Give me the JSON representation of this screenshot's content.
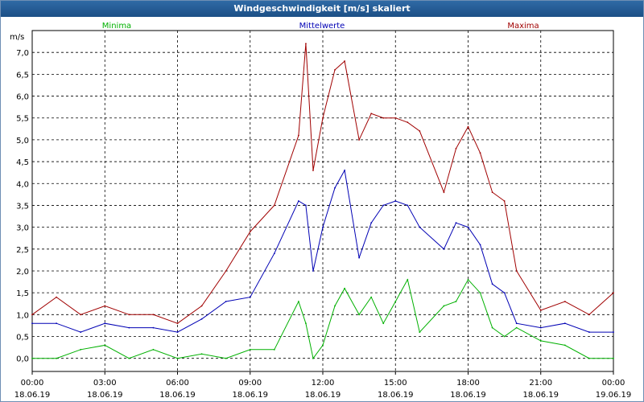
{
  "window": {
    "title": "Windgeschwindigkeit [m/s] skaliert"
  },
  "chart_data": {
    "type": "line",
    "title": "Windgeschwindigkeit [m/s] skaliert",
    "ylabel": "m/s",
    "ylim": [
      -0.3,
      7.5
    ],
    "yticks": [
      "0,0",
      "0,5",
      "1,0",
      "1,5",
      "2,0",
      "2,5",
      "3,0",
      "3,5",
      "4,0",
      "4,5",
      "5,0",
      "5,5",
      "6,0",
      "6,5",
      "7,0"
    ],
    "xlim": [
      0,
      24
    ],
    "x_tick_times": [
      "00:00",
      "03:00",
      "06:00",
      "09:00",
      "12:00",
      "15:00",
      "18:00",
      "21:00",
      "00:00"
    ],
    "x_tick_dates": [
      "18.06.19",
      "18.06.19",
      "18.06.19",
      "18.06.19",
      "18.06.19",
      "18.06.19",
      "18.06.19",
      "18.06.19",
      "19.06.19"
    ],
    "grid": true,
    "legend": "top",
    "x": [
      0,
      1,
      2,
      3,
      4,
      5,
      6,
      7,
      8,
      9,
      10,
      11,
      11.3,
      11.6,
      12,
      12.5,
      12.9,
      13.5,
      14,
      14.5,
      15,
      15.5,
      16,
      17,
      17.5,
      18,
      18.5,
      19,
      19.5,
      20,
      21,
      22,
      23,
      24
    ],
    "series": [
      {
        "name": "Minima",
        "color": "#00b000",
        "values": [
          0,
          0,
          0.2,
          0.3,
          0,
          0.2,
          0,
          0.1,
          0,
          0.2,
          0.2,
          1.3,
          0.8,
          0,
          0.3,
          1.2,
          1.6,
          1.0,
          1.4,
          0.8,
          1.3,
          1.8,
          0.6,
          1.2,
          1.3,
          1.8,
          1.5,
          0.7,
          0.5,
          0.7,
          0.4,
          0.3,
          0,
          0
        ]
      },
      {
        "name": "Mittelwerte",
        "color": "#0000b4",
        "values": [
          0.8,
          0.8,
          0.6,
          0.8,
          0.7,
          0.7,
          0.6,
          0.9,
          1.3,
          1.4,
          2.4,
          3.6,
          3.5,
          2.0,
          3.0,
          3.9,
          4.3,
          2.3,
          3.1,
          3.5,
          3.6,
          3.5,
          3.0,
          2.5,
          3.1,
          3.0,
          2.6,
          1.7,
          1.5,
          0.8,
          0.7,
          0.8,
          0.6,
          0.6
        ]
      },
      {
        "name": "Maxima",
        "color": "#a00000",
        "values": [
          1.0,
          1.4,
          1.0,
          1.2,
          1.0,
          1.0,
          0.8,
          1.2,
          2.0,
          2.9,
          3.5,
          5.1,
          7.2,
          4.3,
          5.5,
          6.6,
          6.8,
          5.0,
          5.6,
          5.5,
          5.5,
          5.4,
          5.2,
          3.8,
          4.8,
          5.3,
          4.7,
          3.8,
          3.6,
          2.0,
          1.1,
          1.3,
          1.0,
          1.5
        ]
      }
    ]
  }
}
